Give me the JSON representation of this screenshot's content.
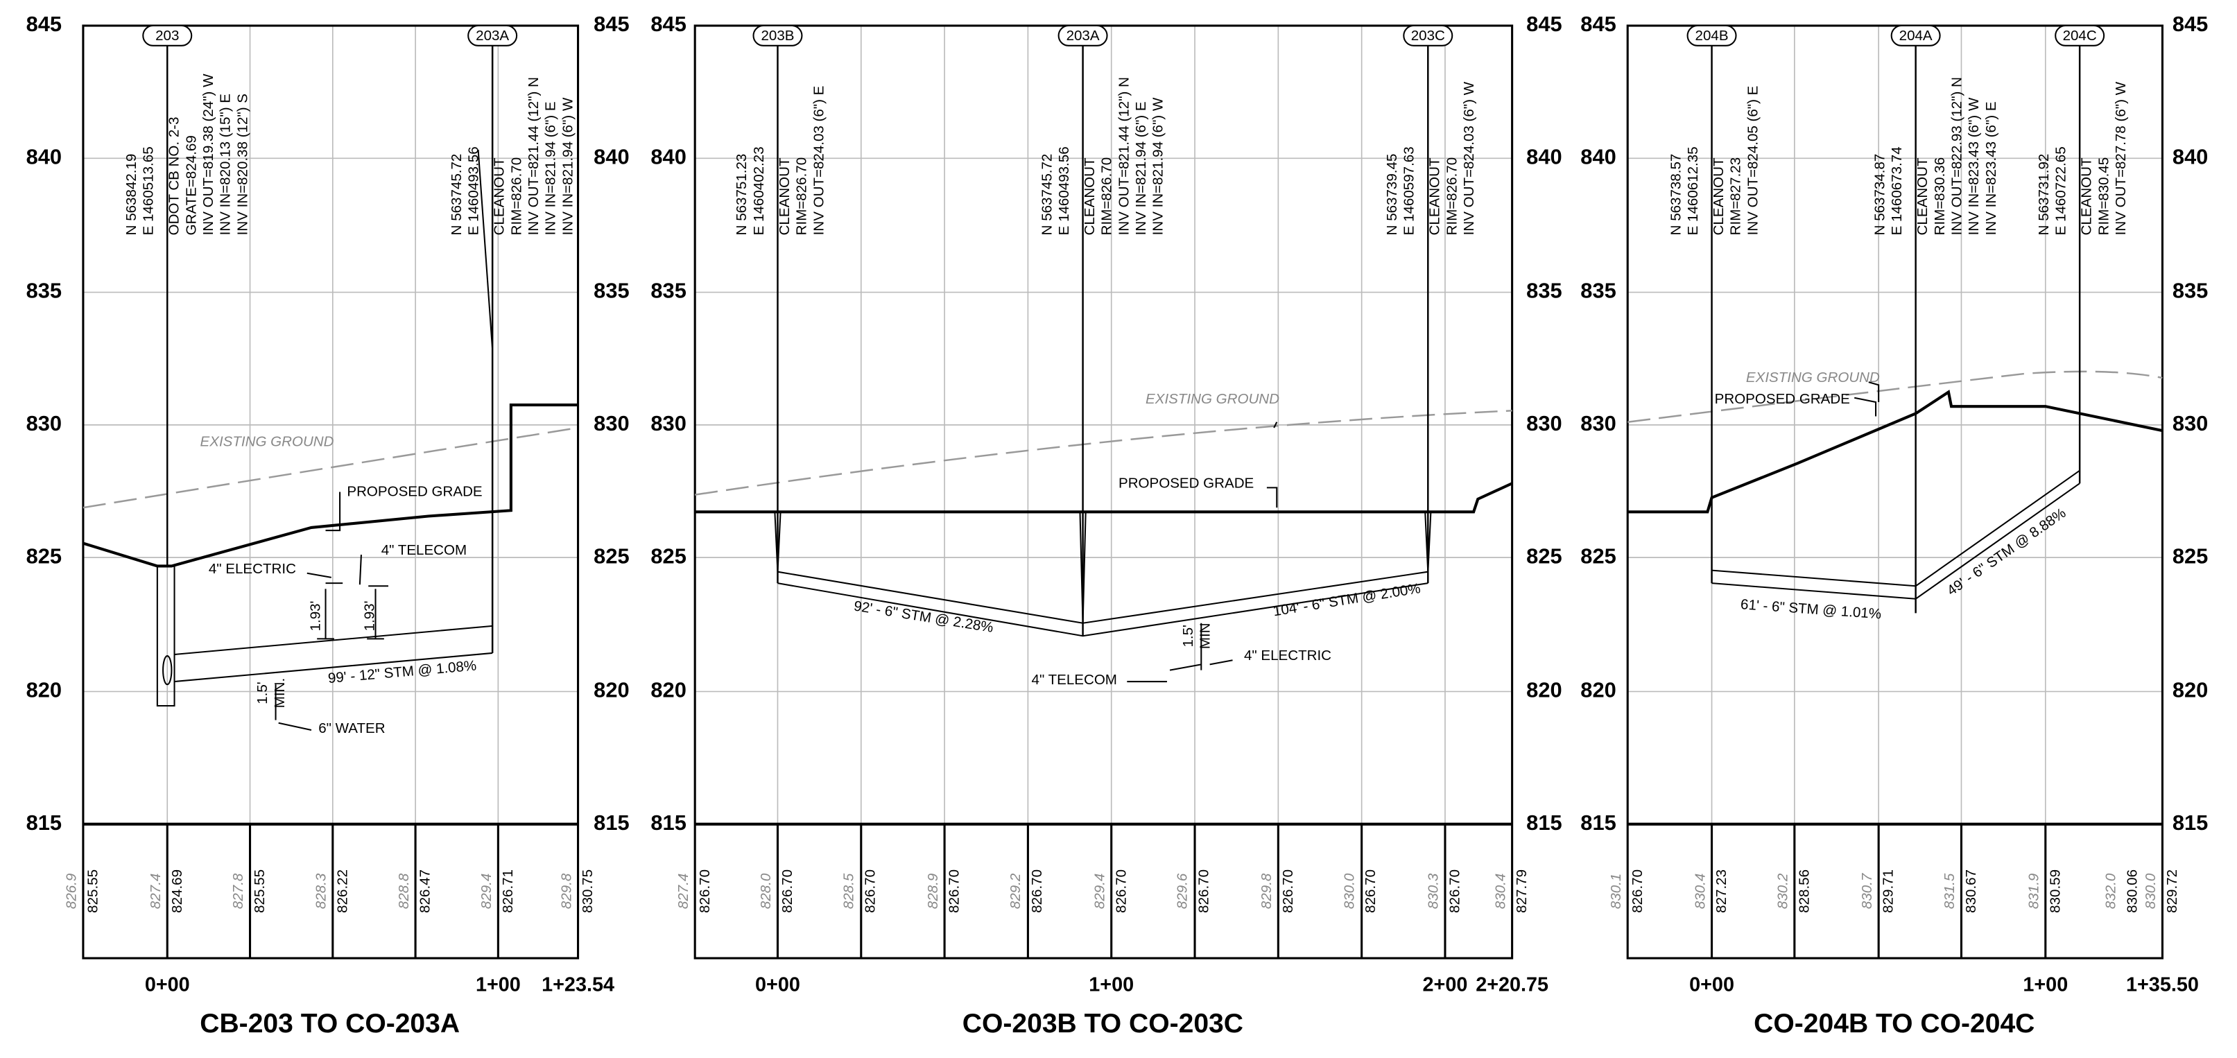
{
  "panels": [
    {
      "title": "CB-203 TO CO-203A",
      "elevation_labels": [
        "845",
        "840",
        "835",
        "830",
        "825",
        "820",
        "815"
      ],
      "stations": [
        "0+00",
        "1+00",
        "1+23.54"
      ],
      "structures": [
        {
          "tag": "203",
          "left": [
            "N 563842.19",
            "E 1460513.65"
          ],
          "right": [
            "ODOT CB NO. 2-3",
            "GRATE=824.69",
            "INV OUT=819.38 (24\") W",
            "INV IN=820.13 (15\") E",
            "INV IN=820.38 (12\") S"
          ]
        },
        {
          "tag": "203A",
          "left": [
            "N 563745.72",
            "E 1460493.56"
          ],
          "right": [
            "CLEANOUT",
            "RIM=826.70",
            "INV OUT=821.44 (12\") N",
            "INV IN=821.94 (6\") E",
            "INV IN=821.94 (6\") W"
          ]
        }
      ],
      "annotations": [
        "EXISTING GROUND",
        "PROPOSED GRADE",
        "4\" ELECTRIC",
        "4\" TELECOM",
        "1.93'",
        "1.93'",
        "99' - 12\" STM @ 1.08%",
        "1.5'",
        "MIN.",
        "6\" WATER"
      ],
      "grade_labels": [
        [
          "826.9",
          "825.55"
        ],
        [
          "827.4",
          "824.69"
        ],
        [
          "827.8",
          "825.55"
        ],
        [
          "828.3",
          "826.22"
        ],
        [
          "828.8",
          "826.47"
        ],
        [
          "829.4",
          "826.71"
        ],
        [
          "829.8",
          "830.75"
        ]
      ]
    },
    {
      "title": "CO-203B TO CO-203C",
      "elevation_labels": [
        "845",
        "840",
        "835",
        "830",
        "825",
        "820",
        "815"
      ],
      "stations": [
        "0+00",
        "1+00",
        "2+00",
        "2+20.75"
      ],
      "structures": [
        {
          "tag": "203B",
          "left": [
            "N 563751.23",
            "E 1460402.23"
          ],
          "right": [
            "CLEANOUT",
            "RIM=826.70",
            "INV OUT=824.03 (6\") E"
          ]
        },
        {
          "tag": "203A",
          "left": [
            "N 563745.72",
            "E 1460493.56"
          ],
          "right": [
            "CLEANOUT",
            "RIM=826.70",
            "INV OUT=821.44 (12\") N",
            "INV IN=821.94 (6\") E",
            "INV IN=821.94 (6\") W"
          ]
        },
        {
          "tag": "203C",
          "left": [
            "N 563739.45",
            "E 1460597.63"
          ],
          "right": [
            "CLEANOUT",
            "RIM=826.70",
            "INV OUT=824.03 (6\") W"
          ]
        }
      ],
      "annotations": [
        "EXISTING GROUND",
        "PROPOSED GRADE",
        "92' - 6\" STM @ 2.28%",
        "104' - 6\" STM @ 2.00%",
        "1.5'",
        "MIN",
        "4\" ELECTRIC",
        "4\" TELECOM"
      ],
      "grade_labels": [
        [
          "827.4",
          "826.70"
        ],
        [
          "828.0",
          "826.70"
        ],
        [
          "828.5",
          "826.70"
        ],
        [
          "828.9",
          "826.70"
        ],
        [
          "829.2",
          "826.70"
        ],
        [
          "829.4",
          "826.70"
        ],
        [
          "829.6",
          "826.70"
        ],
        [
          "829.8",
          "826.70"
        ],
        [
          "830.0",
          "826.70"
        ],
        [
          "830.3",
          "826.70"
        ],
        [
          "830.4",
          "827.79"
        ]
      ]
    },
    {
      "title": "CO-204B TO CO-204C",
      "elevation_labels": [
        "845",
        "840",
        "835",
        "830",
        "825",
        "820",
        "815"
      ],
      "stations": [
        "0+00",
        "1+00",
        "1+35.50"
      ],
      "structures": [
        {
          "tag": "204B",
          "left": [
            "N 563738.57",
            "E 1460612.35"
          ],
          "right": [
            "CLEANOUT",
            "RIM=827.23",
            "INV OUT=824.05 (6\") E"
          ]
        },
        {
          "tag": "204A",
          "left": [
            "N 563734.87",
            "E 1460673.74"
          ],
          "right": [
            "CLEANOUT",
            "RIM=830.36",
            "INV OUT=822.93 (12\") N",
            "INV IN=823.43 (6\") W",
            "INV IN=823.43 (6\") E"
          ]
        },
        {
          "tag": "204C",
          "left": [
            "N 563731.92",
            "E 1460722.65"
          ],
          "right": [
            "CLEANOUT",
            "RIM=830.45",
            "INV OUT=827.78 (6\") W"
          ]
        }
      ],
      "annotations": [
        "EXISTING GROUND",
        "PROPOSED GRADE",
        "61' - 6\" STM @ 1.01%",
        "49' - 6\" STM @ 8.88%"
      ],
      "grade_labels": [
        [
          "830.1",
          "826.70"
        ],
        [
          "830.4",
          "827.23"
        ],
        [
          "830.2",
          "828.56"
        ],
        [
          "830.7",
          "829.71"
        ],
        [
          "831.5",
          "830.67"
        ],
        [
          "831.9",
          "830.59"
        ],
        [
          "832.0",
          "830.06"
        ],
        [
          "830.0",
          "829.72"
        ]
      ]
    }
  ]
}
